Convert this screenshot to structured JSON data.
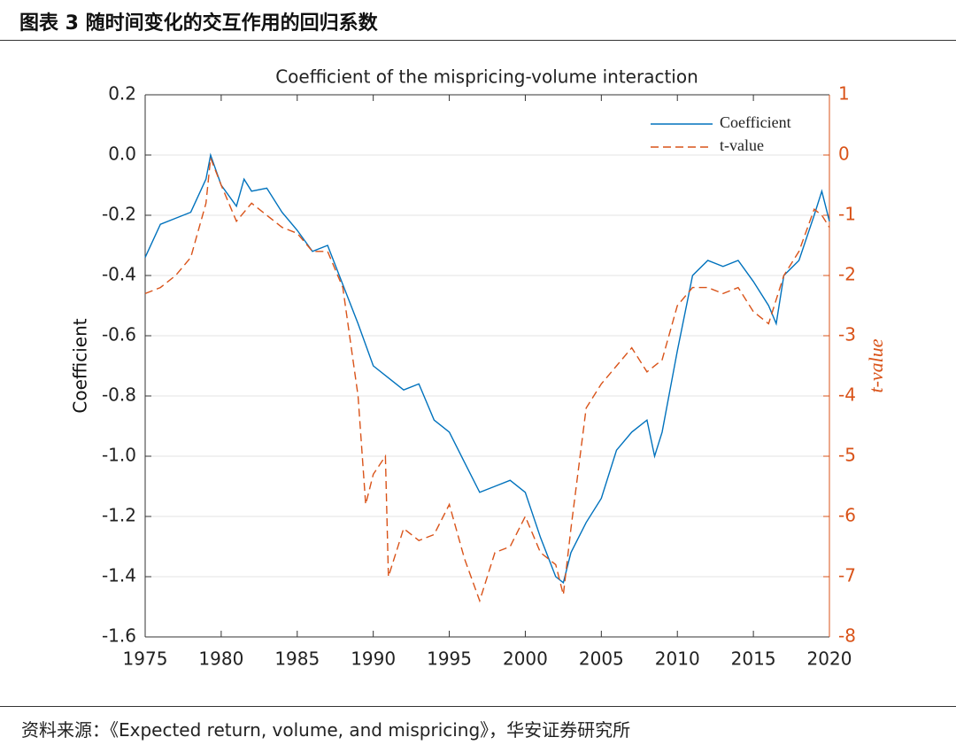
{
  "header": {
    "title": "图表 3 随时间变化的交互作用的回归系数"
  },
  "source": "资料来源：《Expected return, volume, and mispricing》，华安证券研究所",
  "chart_data": {
    "type": "line",
    "title": "Coefficient of the mispricing-volume interaction",
    "y_label": "Coefficient",
    "y2_label": "t-value",
    "grid": true,
    "legend": "upper right",
    "xlim": [
      1975,
      2020
    ],
    "xticks": [
      1975,
      1980,
      1985,
      1990,
      1995,
      2000,
      2005,
      2010,
      2015,
      2020
    ],
    "ylim": [
      -1.6,
      0.2
    ],
    "yticks": [
      0.2,
      {
        "value": 0,
        "label": "0.0"
      },
      -0.2,
      -0.4,
      -0.6,
      -0.8,
      {
        "value": -1,
        "label": "-1.0"
      },
      -1.2,
      -1.4,
      -1.6
    ],
    "y2lim": [
      -8,
      1
    ],
    "y2ticks": [
      1,
      0,
      -1,
      -2,
      -3,
      -4,
      -5,
      -6,
      -7,
      -8
    ],
    "series": [
      {
        "name": "Coefficient",
        "color": "#0072bd",
        "style": "solid",
        "x": [
          1975,
          1976,
          1977,
          1978,
          1979,
          1979.3,
          1980,
          1981,
          1981.5,
          1982,
          1983,
          1984,
          1985,
          1986,
          1987,
          1988,
          1989,
          1990,
          1991,
          1992,
          1993,
          1994,
          1995,
          1996,
          1997,
          1998,
          1999,
          2000,
          2001,
          2002,
          2002.5,
          2003,
          2004,
          2005,
          2006,
          2007,
          2008,
          2008.5,
          2009,
          2010,
          2011,
          2012,
          2013,
          2014,
          2015,
          2016,
          2016.5,
          2017,
          2018,
          2019,
          2019.5,
          2020
        ],
        "values": [
          -0.34,
          -0.23,
          -0.21,
          -0.19,
          -0.08,
          0.0,
          -0.1,
          -0.17,
          -0.08,
          -0.12,
          -0.11,
          -0.19,
          -0.25,
          -0.32,
          -0.3,
          -0.43,
          -0.56,
          -0.7,
          -0.74,
          -0.78,
          -0.76,
          -0.88,
          -0.92,
          -1.02,
          -1.12,
          -1.1,
          -1.08,
          -1.12,
          -1.27,
          -1.4,
          -1.42,
          -1.32,
          -1.22,
          -1.14,
          -0.98,
          -0.92,
          -0.88,
          -1.0,
          -0.92,
          -0.65,
          -0.4,
          -0.35,
          -0.37,
          -0.35,
          -0.42,
          -0.5,
          -0.56,
          -0.4,
          -0.35,
          -0.2,
          -0.12,
          -0.22
        ]
      },
      {
        "name": "t-value",
        "color": "#d95319",
        "style": "dashed",
        "axis": "y2",
        "x": [
          1975,
          1976,
          1977,
          1978,
          1979,
          1979.3,
          1980,
          1981,
          1982,
          1983,
          1984,
          1985,
          1986,
          1987,
          1988,
          1989,
          1989.5,
          1990,
          1990.8,
          1991,
          1992,
          1993,
          1994,
          1995,
          1996,
          1997,
          1998,
          1999,
          2000,
          2001,
          2002,
          2002.5,
          2003,
          2004,
          2005,
          2006,
          2007,
          2008,
          2009,
          2010,
          2011,
          2012,
          2013,
          2014,
          2015,
          2016,
          2017,
          2018,
          2019,
          2019.5,
          2020
        ],
        "values": [
          -2.3,
          -2.2,
          -2.0,
          -1.7,
          -0.8,
          -0.05,
          -0.5,
          -1.1,
          -0.8,
          -1.0,
          -1.2,
          -1.3,
          -1.6,
          -1.6,
          -2.2,
          -4.0,
          -5.8,
          -5.3,
          -5.0,
          -7.0,
          -6.2,
          -6.4,
          -6.3,
          -5.8,
          -6.7,
          -7.4,
          -6.6,
          -6.5,
          -6.0,
          -6.6,
          -6.8,
          -7.3,
          -6.2,
          -4.2,
          -3.8,
          -3.5,
          -3.2,
          -3.6,
          -3.4,
          -2.5,
          -2.2,
          -2.2,
          -2.3,
          -2.2,
          -2.6,
          -2.8,
          -2.0,
          -1.6,
          -0.9,
          -1.0,
          -1.2
        ]
      }
    ]
  }
}
